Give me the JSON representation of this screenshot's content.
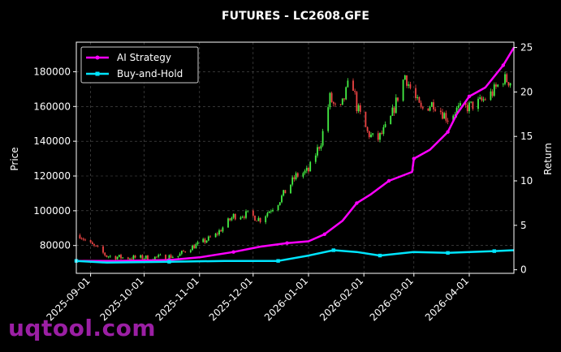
{
  "watermark": "uqtool.com",
  "chart_data": {
    "type": "candlestick+line",
    "title": "FUTURES - LC2608.GFE",
    "ylabel": "Price",
    "y2label": "Return",
    "ylim": [
      64000,
      197000
    ],
    "y2lim": [
      -0.4,
      25.6
    ],
    "yticks": [
      80000,
      100000,
      120000,
      140000,
      160000,
      180000
    ],
    "y2ticks": [
      0,
      5,
      10,
      15,
      20,
      25
    ],
    "xlim": [
      "2025-08-24",
      "2026-04-26"
    ],
    "xticks": [
      "2025-09-01",
      "2025-10-01",
      "2025-11-01",
      "2025-12-01",
      "2026-01-01",
      "2026-02-01",
      "2026-03-01",
      "2026-04-01"
    ],
    "grid": true,
    "legend_position": "top-left",
    "colors": {
      "up": "#44ee44",
      "down": "#ee4444",
      "ai": "#ff00ff",
      "bh": "#00e5ff",
      "grid": "#555555",
      "axis": "#ffffff"
    },
    "price_anchors": [
      [
        "2025-08-26",
        86000
      ],
      [
        "2025-08-30",
        82000
      ],
      [
        "2025-09-05",
        78000
      ],
      [
        "2025-09-10",
        74000
      ],
      [
        "2025-09-20",
        73000
      ],
      [
        "2025-10-05",
        73000
      ],
      [
        "2025-10-20",
        74000
      ],
      [
        "2025-10-25",
        78000
      ],
      [
        "2025-11-01",
        81000
      ],
      [
        "2025-11-10",
        86000
      ],
      [
        "2025-11-20",
        97000
      ],
      [
        "2025-11-28",
        98000
      ],
      [
        "2025-12-05",
        95000
      ],
      [
        "2025-12-15",
        105000
      ],
      [
        "2025-12-25",
        120000
      ],
      [
        "2026-01-01",
        123000
      ],
      [
        "2026-01-08",
        140000
      ],
      [
        "2026-01-13",
        165000
      ],
      [
        "2026-01-18",
        155000
      ],
      [
        "2026-01-25",
        178000
      ],
      [
        "2026-01-28",
        160000
      ],
      [
        "2026-02-03",
        145000
      ],
      [
        "2026-02-08",
        140000
      ],
      [
        "2026-02-15",
        150000
      ],
      [
        "2026-02-24",
        178000
      ],
      [
        "2026-02-28",
        168000
      ],
      [
        "2026-03-05",
        158000
      ],
      [
        "2026-03-12",
        162000
      ],
      [
        "2026-03-20",
        153000
      ],
      [
        "2026-03-25",
        158000
      ],
      [
        "2026-04-01",
        160000
      ],
      [
        "2026-04-08",
        163000
      ],
      [
        "2026-04-14",
        168000
      ],
      [
        "2026-04-20",
        176000
      ],
      [
        "2026-04-25",
        174000
      ]
    ],
    "series": [
      {
        "name": "AI Strategy",
        "marker": "circle",
        "points": [
          [
            "2025-08-24",
            1.0
          ],
          [
            "2025-09-15",
            1.0
          ],
          [
            "2025-10-15",
            1.1
          ],
          [
            "2025-11-01",
            1.4
          ],
          [
            "2025-11-20",
            2.0
          ],
          [
            "2025-12-05",
            2.6
          ],
          [
            "2025-12-20",
            3.0
          ],
          [
            "2026-01-01",
            3.2
          ],
          [
            "2026-01-10",
            4.0
          ],
          [
            "2026-01-20",
            5.5
          ],
          [
            "2026-01-28",
            7.5
          ],
          [
            "2026-02-05",
            8.5
          ],
          [
            "2026-02-15",
            10.0
          ],
          [
            "2026-02-28",
            11.0
          ],
          [
            "2026-03-01",
            12.5
          ],
          [
            "2026-03-10",
            13.5
          ],
          [
            "2026-03-20",
            15.5
          ],
          [
            "2026-03-25",
            17.5
          ],
          [
            "2026-04-01",
            19.5
          ],
          [
            "2026-04-10",
            20.5
          ],
          [
            "2026-04-20",
            23.0
          ],
          [
            "2026-04-26",
            25.0
          ]
        ]
      },
      {
        "name": "Buy-and-Hold",
        "marker": "square",
        "points": [
          [
            "2025-08-24",
            1.0
          ],
          [
            "2025-09-10",
            0.8
          ],
          [
            "2025-10-15",
            0.9
          ],
          [
            "2025-11-15",
            1.0
          ],
          [
            "2025-12-15",
            1.0
          ],
          [
            "2026-01-01",
            1.6
          ],
          [
            "2026-01-15",
            2.2
          ],
          [
            "2026-01-28",
            2.0
          ],
          [
            "2026-02-10",
            1.6
          ],
          [
            "2026-03-01",
            2.0
          ],
          [
            "2026-03-20",
            1.9
          ],
          [
            "2026-04-01",
            2.0
          ],
          [
            "2026-04-15",
            2.1
          ],
          [
            "2026-04-26",
            2.2
          ]
        ]
      }
    ]
  }
}
